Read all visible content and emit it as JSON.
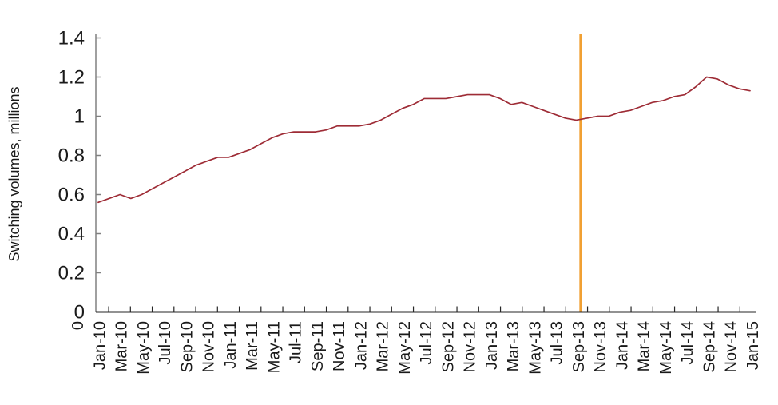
{
  "chart_data": {
    "type": "line",
    "title": "",
    "xlabel": "",
    "ylabel": "Switching volumes, millions",
    "ylim": [
      0,
      1.4
    ],
    "grid": false,
    "legend": false,
    "y_tick_labels": [
      "0",
      "0.2",
      "0.4",
      "0.6",
      "0.8",
      "1",
      "1.2",
      "1.4"
    ],
    "y_tick_values": [
      0,
      0.2,
      0.4,
      0.6,
      0.8,
      1,
      1.2,
      1.4
    ],
    "x_tick_labels": [
      "0",
      "Jan-10",
      "Mar-10",
      "May-10",
      "Jul-10",
      "Sep-10",
      "Nov-10",
      "Jan-11",
      "Mar-11",
      "May-11",
      "Jul-11",
      "Sep-11",
      "Nov-11",
      "Jan-12",
      "Mar-12",
      "May-12",
      "Jul-12",
      "Sep-12",
      "Nov-12",
      "Jan-13",
      "Mar-13",
      "May-13",
      "Jul-13",
      "Sep-13",
      "Nov-13",
      "Jan-14",
      "Mar-14",
      "May-14",
      "Jul-14",
      "Sep-14",
      "Nov-14",
      "Jan-15"
    ],
    "x": [
      "Jan-10",
      "Feb-10",
      "Mar-10",
      "Apr-10",
      "May-10",
      "Jun-10",
      "Jul-10",
      "Aug-10",
      "Sep-10",
      "Oct-10",
      "Nov-10",
      "Dec-10",
      "Jan-11",
      "Feb-11",
      "Mar-11",
      "Apr-11",
      "May-11",
      "Jun-11",
      "Jul-11",
      "Aug-11",
      "Sep-11",
      "Oct-11",
      "Nov-11",
      "Dec-11",
      "Jan-12",
      "Feb-12",
      "Mar-12",
      "Apr-12",
      "May-12",
      "Jun-12",
      "Jul-12",
      "Aug-12",
      "Sep-12",
      "Oct-12",
      "Nov-12",
      "Dec-12",
      "Jan-13",
      "Feb-13",
      "Mar-13",
      "Apr-13",
      "May-13",
      "Jun-13",
      "Jul-13",
      "Aug-13",
      "Sep-13",
      "Oct-13",
      "Nov-13",
      "Dec-13",
      "Jan-14",
      "Feb-14",
      "Mar-14",
      "Apr-14",
      "May-14",
      "Jun-14",
      "Jul-14",
      "Aug-14",
      "Sep-14",
      "Oct-14",
      "Nov-14",
      "Dec-14",
      "Jan-15"
    ],
    "series": [
      {
        "name": "Switching volumes",
        "color": "#9E2C36",
        "values": [
          0.56,
          0.58,
          0.6,
          0.58,
          0.6,
          0.63,
          0.66,
          0.69,
          0.72,
          0.75,
          0.77,
          0.79,
          0.79,
          0.81,
          0.83,
          0.86,
          0.89,
          0.91,
          0.92,
          0.92,
          0.92,
          0.93,
          0.95,
          0.95,
          0.95,
          0.96,
          0.98,
          1.01,
          1.04,
          1.06,
          1.09,
          1.09,
          1.09,
          1.1,
          1.11,
          1.11,
          1.11,
          1.09,
          1.06,
          1.07,
          1.05,
          1.03,
          1.01,
          0.99,
          0.98,
          0.99,
          1.0,
          1.0,
          1.02,
          1.03,
          1.05,
          1.07,
          1.08,
          1.1,
          1.11,
          1.15,
          1.2,
          1.19,
          1.16,
          1.14,
          1.13
        ]
      }
    ],
    "vline": {
      "x_label": "Sep-13",
      "color": "#F1A033"
    }
  },
  "colors": {
    "y_axis": "#808080",
    "x_axis": "#262626",
    "text": "#1a1a1a"
  }
}
